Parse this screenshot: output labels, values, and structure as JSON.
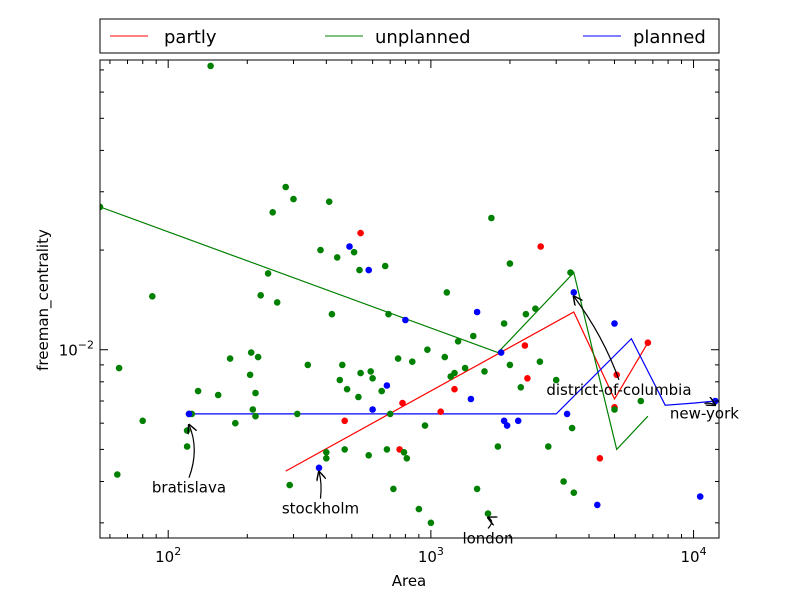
{
  "chart_data": {
    "type": "scatter",
    "title": "",
    "xlabel": "Area",
    "ylabel": "freeman_centrality",
    "xscale": "log",
    "yscale": "log",
    "xlim": [
      55,
      12500
    ],
    "ylim": [
      0.0027,
      0.075
    ],
    "grid": false,
    "legend_position": "top",
    "x_ticks": [
      {
        "value": 100,
        "base": "10",
        "exp": "2"
      },
      {
        "value": 1000,
        "base": "10",
        "exp": "3"
      },
      {
        "value": 10000,
        "base": "10",
        "exp": "4"
      }
    ],
    "y_ticks": [
      {
        "value": 0.01,
        "base": "10",
        "exp": "−2"
      }
    ],
    "legend": [
      {
        "label": "partly",
        "color": "#ff0000"
      },
      {
        "label": "unplanned",
        "color": "#008000"
      },
      {
        "label": "planned",
        "color": "#0000ff"
      }
    ],
    "series": [
      {
        "name": "partly",
        "color": "#ff0000",
        "points": [
          [
            540,
            0.0225
          ],
          [
            2620,
            0.0205
          ],
          [
            2280,
            0.0103
          ],
          [
            2330,
            0.0082
          ],
          [
            1230,
            0.0076
          ],
          [
            780,
            0.0069
          ],
          [
            470,
            0.0061
          ],
          [
            1090,
            0.0065
          ],
          [
            760,
            0.005
          ],
          [
            4400,
            0.0047
          ],
          [
            5000,
            0.0067
          ],
          [
            5100,
            0.0084
          ],
          [
            6700,
            0.0105
          ]
        ],
        "line": [
          [
            280,
            0.0043
          ],
          [
            3500,
            0.013
          ],
          [
            5000,
            0.0071
          ],
          [
            6700,
            0.0105
          ]
        ]
      },
      {
        "name": "unplanned",
        "color": "#008000",
        "points": [
          [
            55,
            0.027
          ],
          [
            65,
            0.0088
          ],
          [
            80,
            0.0061
          ],
          [
            64,
            0.0042
          ],
          [
            87,
            0.0145
          ],
          [
            118,
            0.0057
          ],
          [
            120,
            0.0064
          ],
          [
            123,
            0.0064
          ],
          [
            118,
            0.0051
          ],
          [
            130,
            0.0075
          ],
          [
            145,
            0.072
          ],
          [
            155,
            0.0073
          ],
          [
            172,
            0.0094
          ],
          [
            180,
            0.006
          ],
          [
            205,
            0.0084
          ],
          [
            207,
            0.0098
          ],
          [
            210,
            0.0066
          ],
          [
            215,
            0.0074
          ],
          [
            215,
            0.0063
          ],
          [
            220,
            0.0095
          ],
          [
            225,
            0.0146
          ],
          [
            240,
            0.017
          ],
          [
            250,
            0.026
          ],
          [
            260,
            0.0139
          ],
          [
            280,
            0.031
          ],
          [
            290,
            0.0039
          ],
          [
            300,
            0.0285
          ],
          [
            310,
            0.0064
          ],
          [
            340,
            0.009
          ],
          [
            380,
            0.02
          ],
          [
            400,
            0.0049
          ],
          [
            400,
            0.0047
          ],
          [
            410,
            0.028
          ],
          [
            420,
            0.0128
          ],
          [
            440,
            0.019
          ],
          [
            450,
            0.0081
          ],
          [
            460,
            0.009
          ],
          [
            470,
            0.005
          ],
          [
            480,
            0.0076
          ],
          [
            510,
            0.0197
          ],
          [
            530,
            0.0072
          ],
          [
            535,
            0.0174
          ],
          [
            540,
            0.0085
          ],
          [
            580,
            0.0048
          ],
          [
            590,
            0.0086
          ],
          [
            600,
            0.0082
          ],
          [
            650,
            0.0075
          ],
          [
            670,
            0.0179
          ],
          [
            680,
            0.005
          ],
          [
            690,
            0.0128
          ],
          [
            700,
            0.0064
          ],
          [
            720,
            0.0038
          ],
          [
            750,
            0.0094
          ],
          [
            790,
            0.0049
          ],
          [
            810,
            0.0047
          ],
          [
            850,
            0.0092
          ],
          [
            900,
            0.0033
          ],
          [
            950,
            0.0059
          ],
          [
            970,
            0.01
          ],
          [
            1000,
            0.003
          ],
          [
            1130,
            0.0095
          ],
          [
            1150,
            0.0149
          ],
          [
            1190,
            0.0083
          ],
          [
            1230,
            0.0085
          ],
          [
            1270,
            0.0106
          ],
          [
            1350,
            0.0088
          ],
          [
            1450,
            0.011
          ],
          [
            1500,
            0.0038
          ],
          [
            1600,
            0.0086
          ],
          [
            1650,
            0.0032
          ],
          [
            1700,
            0.025
          ],
          [
            1800,
            0.0051
          ],
          [
            1900,
            0.012
          ],
          [
            2000,
            0.0182
          ],
          [
            2200,
            0.0077
          ],
          [
            2300,
            0.0128
          ],
          [
            2500,
            0.0133
          ],
          [
            2600,
            0.0092
          ],
          [
            2800,
            0.0051
          ],
          [
            3000,
            0.0081
          ],
          [
            3200,
            0.004
          ],
          [
            3400,
            0.0171
          ],
          [
            3450,
            0.0058
          ],
          [
            3500,
            0.0037
          ],
          [
            5000,
            0.0066
          ],
          [
            6300,
            0.007
          ],
          [
            2000,
            0.009
          ]
        ],
        "line": [
          [
            55,
            0.027
          ],
          [
            1800,
            0.0098
          ],
          [
            3500,
            0.0171
          ],
          [
            5100,
            0.005
          ],
          [
            6700,
            0.0063
          ]
        ]
      },
      {
        "name": "planned",
        "color": "#0000ff",
        "points": [
          [
            120,
            0.0064
          ],
          [
            375,
            0.0044
          ],
          [
            490,
            0.0205
          ],
          [
            580,
            0.0174
          ],
          [
            600,
            0.0066
          ],
          [
            680,
            0.0078
          ],
          [
            800,
            0.0123
          ],
          [
            1420,
            0.0071
          ],
          [
            1500,
            0.013
          ],
          [
            1850,
            0.0098
          ],
          [
            1900,
            0.0061
          ],
          [
            1950,
            0.0059
          ],
          [
            2150,
            0.0061
          ],
          [
            3300,
            0.0064
          ],
          [
            3500,
            0.0149
          ],
          [
            4300,
            0.0034
          ],
          [
            5000,
            0.012
          ],
          [
            10600,
            0.0036
          ],
          [
            12100,
            0.007
          ]
        ],
        "line": [
          [
            120,
            0.0064
          ],
          [
            3000,
            0.0064
          ],
          [
            5800,
            0.0108
          ],
          [
            7800,
            0.0068
          ],
          [
            10000,
            0.0069
          ],
          [
            12100,
            0.007
          ]
        ]
      }
    ],
    "annotations": [
      {
        "label": "bratislava",
        "point": [
          120,
          0.0061
        ],
        "text": [
          120,
          0.0037
        ]
      },
      {
        "label": "stockholm",
        "point": [
          375,
          0.0044
        ],
        "text": [
          380,
          0.0032
        ]
      },
      {
        "label": "london",
        "point": [
          1650,
          0.0032
        ],
        "text": [
          1650,
          0.0026
        ]
      },
      {
        "label": "district-of-columbia",
        "point": [
          3500,
          0.0149
        ],
        "text": [
          5200,
          0.0073
        ]
      },
      {
        "label": "new-york",
        "point": [
          12100,
          0.007
        ],
        "text": [
          11000,
          0.0062
        ]
      }
    ]
  }
}
